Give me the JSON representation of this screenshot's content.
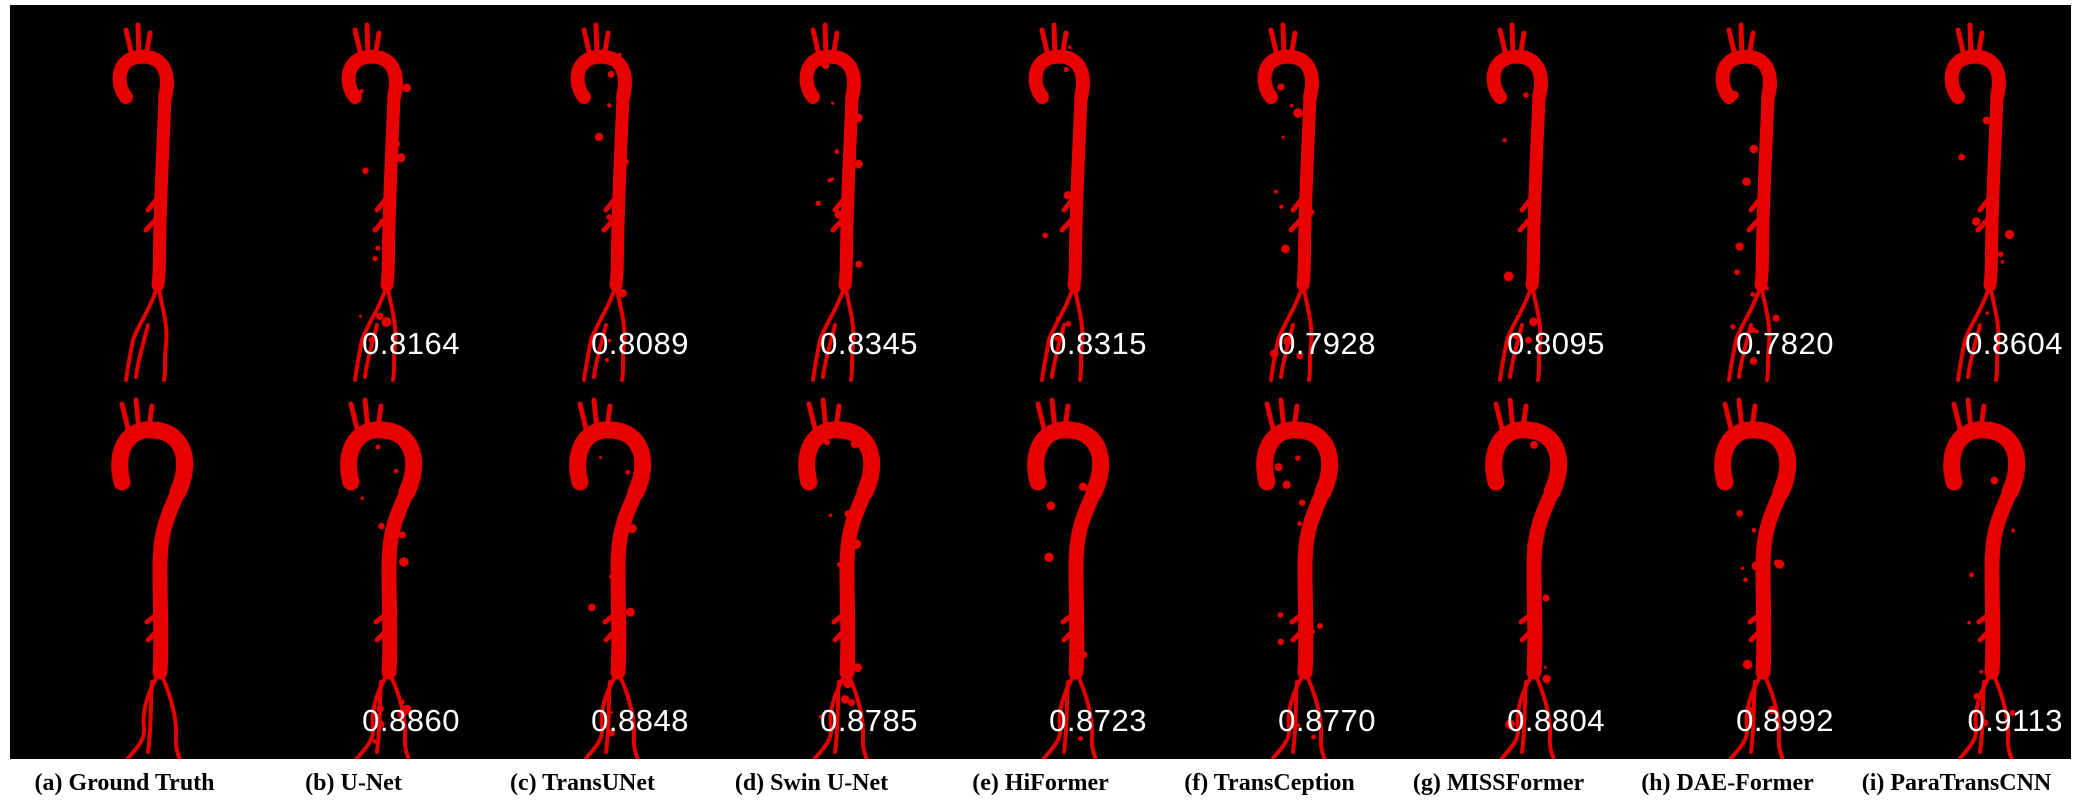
{
  "figure": {
    "mask_color": "#e60000",
    "background_color": "#000000",
    "columns": [
      {
        "caption": "(a) Ground Truth",
        "scores": [
          "",
          ""
        ]
      },
      {
        "caption": "(b) U-Net",
        "scores": [
          "0.8164",
          "0.8860"
        ]
      },
      {
        "caption": "(c) TransUNet",
        "scores": [
          "0.8089",
          "0.8848"
        ]
      },
      {
        "caption": "(d) Swin U-Net",
        "scores": [
          "0.8345",
          "0.8785"
        ]
      },
      {
        "caption": "(e) HiFormer",
        "scores": [
          "0.8315",
          "0.8723"
        ]
      },
      {
        "caption": "(f) TransCeption",
        "scores": [
          "0.7928",
          "0.8770"
        ]
      },
      {
        "caption": "(g) MISSFormer",
        "scores": [
          "0.8095",
          "0.8804"
        ]
      },
      {
        "caption": "(h) DAE-Former",
        "scores": [
          "0.7820",
          "0.8992"
        ]
      },
      {
        "caption": "(i) ParaTransCNN",
        "scores": [
          "0.8604",
          "0.9113"
        ]
      }
    ],
    "rows": [
      {
        "id": "sample-1",
        "shape": "candy-cane aorta"
      },
      {
        "id": "sample-2",
        "shape": "question-mark aorta"
      }
    ]
  }
}
